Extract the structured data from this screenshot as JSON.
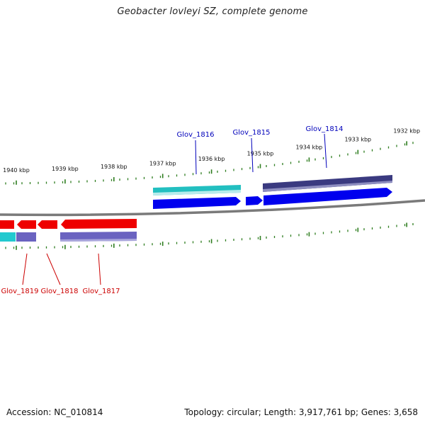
{
  "title": "Geobacter lovleyi SZ, complete genome",
  "accession": "Accession: NC_010814",
  "summary": "Topology: circular; Length: 3,917,761 bp; Genes: 3,658",
  "colors": {
    "backbone": "#7a7a7a",
    "ticks": "#2e7d1f",
    "forward_cds": "#0000ee",
    "reverse_cds": "#ee0000",
    "forward_gene": "#3a3a80",
    "forward_gene_alt": "#22bfc0",
    "reverse_gene": "#6a63c0",
    "reverse_gene_alt": "#22c9cf",
    "label_forward": "#0000bb",
    "label_reverse": "#cc0000"
  },
  "tick_labels": [
    {
      "kbp": 1940,
      "text": "1940 kbp"
    },
    {
      "kbp": 1939,
      "text": "1939 kbp"
    },
    {
      "kbp": 1938,
      "text": "1938 kbp"
    },
    {
      "kbp": 1937,
      "text": "1937 kbp"
    },
    {
      "kbp": 1936,
      "text": "1936 kbp"
    },
    {
      "kbp": 1935,
      "text": "1935 kbp"
    },
    {
      "kbp": 1934,
      "text": "1934 kbp"
    },
    {
      "kbp": 1933,
      "text": "1933 kbp"
    },
    {
      "kbp": 1932,
      "text": "1932 kbp"
    }
  ],
  "genes_forward": [
    {
      "name": "Glov_1816",
      "label": "Glov_1816"
    },
    {
      "name": "Glov_1815",
      "label": "Glov_1815"
    },
    {
      "name": "Glov_1814",
      "label": "Glov_1814"
    }
  ],
  "genes_reverse": [
    {
      "name": "Glov_1819",
      "label": "Glov_1819"
    },
    {
      "name": "Glov_1818",
      "label": "Glov_1818"
    },
    {
      "name": "Glov_1817",
      "label": "Glov_1817"
    }
  ]
}
